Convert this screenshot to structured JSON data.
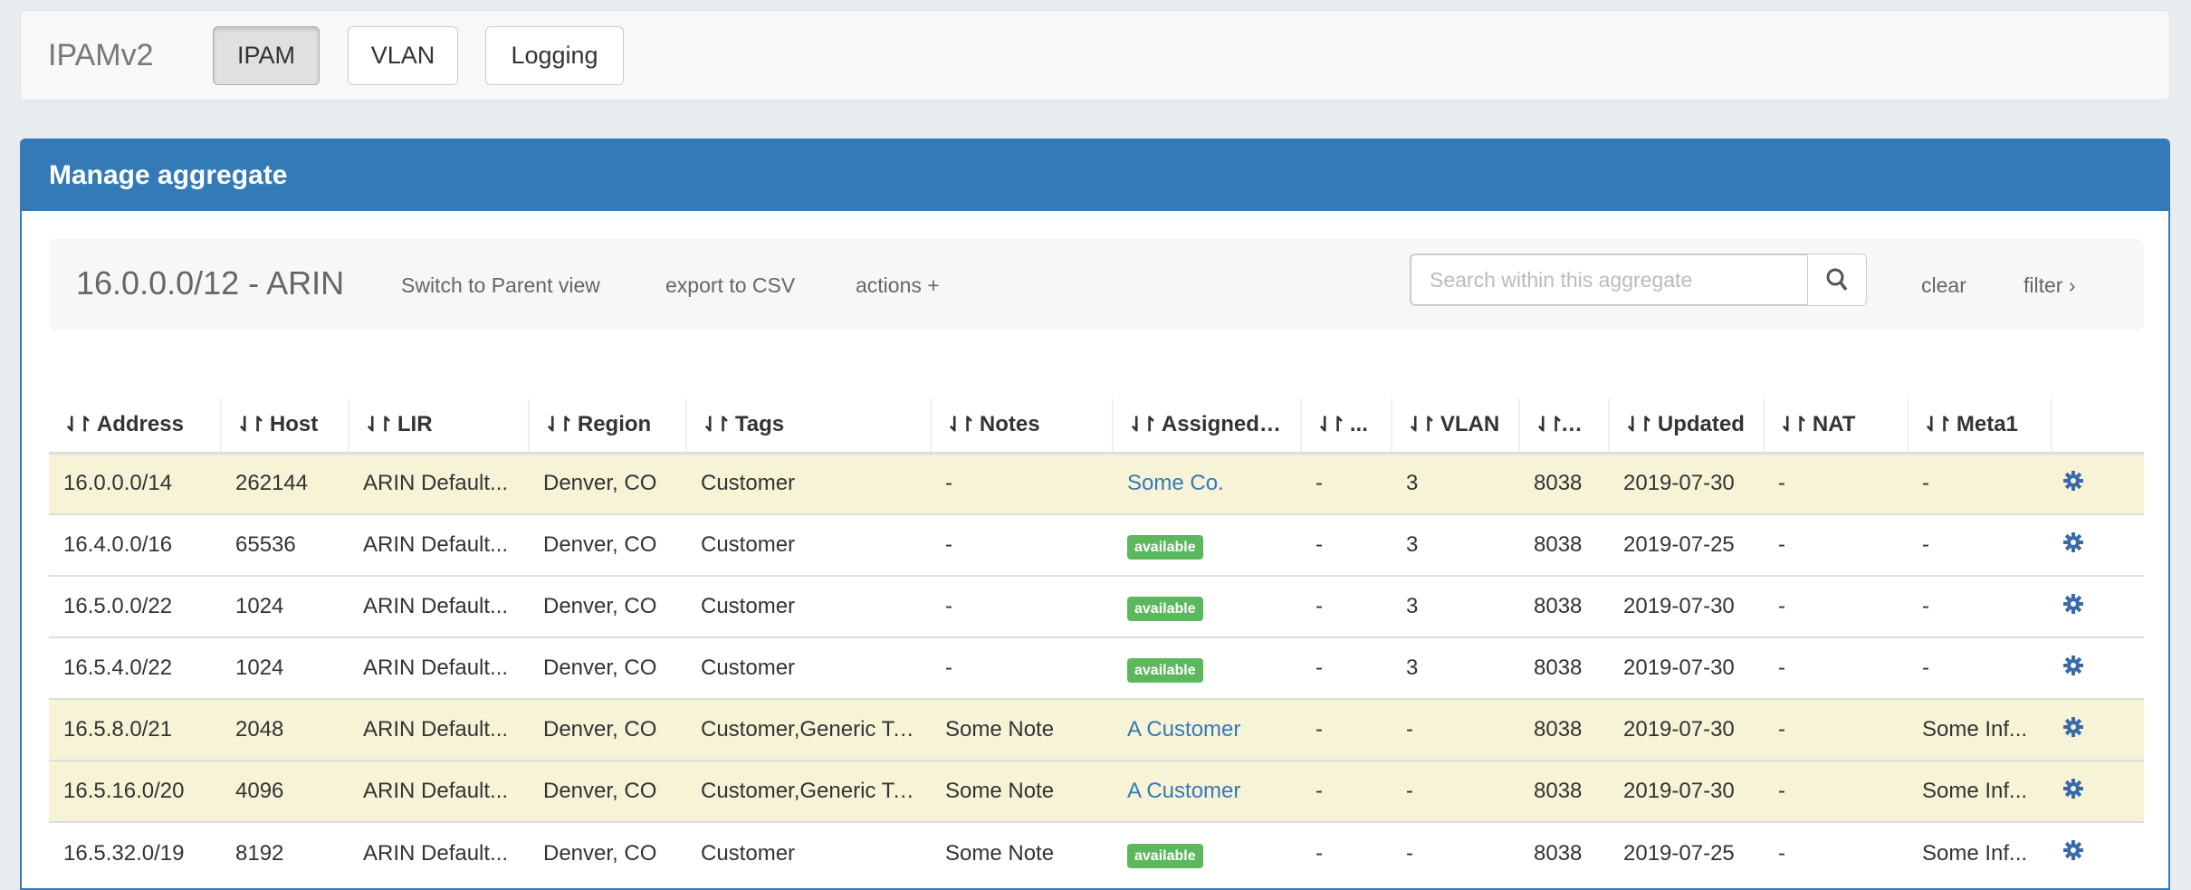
{
  "nav": {
    "brand": "IPAMv2",
    "buttons": [
      {
        "label": "IPAM",
        "active": true
      },
      {
        "label": "VLAN"
      },
      {
        "label": "Logging"
      }
    ]
  },
  "panel": {
    "title": "Manage aggregate"
  },
  "toolbar": {
    "aggregate": "16.0.0.0/12 - ARIN",
    "switch_parent": "Switch to Parent view",
    "export_csv": "export to CSV",
    "actions": "actions +",
    "search_placeholder": "Search within this aggregate",
    "clear": "clear",
    "filter": "filter ›"
  },
  "colors": {
    "accent": "#337ab7",
    "highlight_row": "#f7f3d6",
    "available_badge": "#5cb85c"
  },
  "table": {
    "sort_icon": "⇃↾",
    "columns": [
      "Address",
      "Host",
      "LIR",
      "Region",
      "Tags",
      "Notes",
      "Assigned to",
      "...",
      "VLAN",
      "A...",
      "Updated",
      "NAT",
      "Meta1",
      ""
    ],
    "rows": [
      {
        "hl": true,
        "cells": [
          "16.0.0.0/14",
          "262144",
          "ARIN Default...",
          "Denver, CO",
          "Customer",
          "-",
          "Some Co.",
          "-",
          "3",
          "8038",
          "2019-07-30",
          "-",
          "-"
        ],
        "assigned_type": "link"
      },
      {
        "hl": false,
        "cells": [
          "16.4.0.0/16",
          "65536",
          "ARIN Default...",
          "Denver, CO",
          "Customer",
          "-",
          "available",
          "-",
          "3",
          "8038",
          "2019-07-25",
          "-",
          "-"
        ],
        "assigned_type": "badge"
      },
      {
        "hl": false,
        "cells": [
          "16.5.0.0/22",
          "1024",
          "ARIN Default...",
          "Denver, CO",
          "Customer",
          "-",
          "available",
          "-",
          "3",
          "8038",
          "2019-07-30",
          "-",
          "-"
        ],
        "assigned_type": "badge"
      },
      {
        "hl": false,
        "cells": [
          "16.5.4.0/22",
          "1024",
          "ARIN Default...",
          "Denver, CO",
          "Customer",
          "-",
          "available",
          "-",
          "3",
          "8038",
          "2019-07-30",
          "-",
          "-"
        ],
        "assigned_type": "badge"
      },
      {
        "hl": true,
        "cells": [
          "16.5.8.0/21",
          "2048",
          "ARIN Default...",
          "Denver, CO",
          "Customer,Generic Tag",
          "Some Note",
          "A Customer",
          "-",
          "-",
          "8038",
          "2019-07-30",
          "-",
          "Some Inf..."
        ],
        "assigned_type": "link"
      },
      {
        "hl": true,
        "cells": [
          "16.5.16.0/20",
          "4096",
          "ARIN Default...",
          "Denver, CO",
          "Customer,Generic Tag",
          "Some Note",
          "A Customer",
          "-",
          "-",
          "8038",
          "2019-07-30",
          "-",
          "Some Inf..."
        ],
        "assigned_type": "link"
      },
      {
        "hl": false,
        "cells": [
          "16.5.32.0/19",
          "8192",
          "ARIN Default...",
          "Denver, CO",
          "Customer",
          "Some Note",
          "available",
          "-",
          "-",
          "8038",
          "2019-07-25",
          "-",
          "Some Inf..."
        ],
        "assigned_type": "badge"
      }
    ]
  }
}
